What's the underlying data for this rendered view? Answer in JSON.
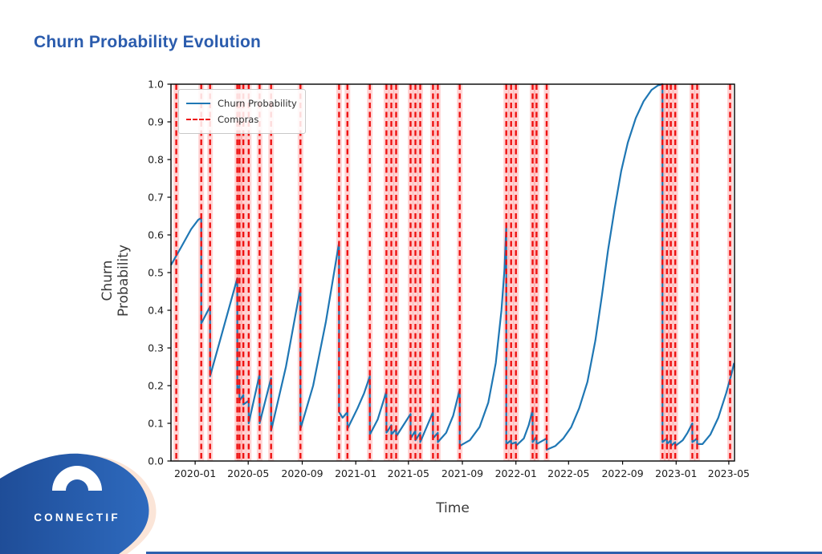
{
  "page": {
    "heading": "Churn Probability Evolution"
  },
  "brand": {
    "name": "CONNECTIF"
  },
  "colors": {
    "title": "#2b5cad",
    "series_line": "#1f77b4",
    "event_line": "#ee1111",
    "event_halo": "#ff3c3c38",
    "logo_dark": "#1d4a94",
    "logo_light": "#2e6abe",
    "logo_outline": "#fbe5d8",
    "bottom_bar": "#2e5fad"
  },
  "chart_data": {
    "type": "line",
    "title": "Churn Probability Evolution",
    "xlabel": "Time",
    "ylabel": "Churn Probability",
    "ylim": [
      0.0,
      1.0
    ],
    "grid": false,
    "x_range": [
      "2019-11-07",
      "2023-05-14"
    ],
    "x_ticks": [
      "2020-01",
      "2020-05",
      "2020-09",
      "2021-01",
      "2021-05",
      "2021-09",
      "2022-01",
      "2022-05",
      "2022-09",
      "2023-01",
      "2023-05"
    ],
    "y_ticks": [
      0.0,
      0.1,
      0.2,
      0.3,
      0.4,
      0.5,
      0.6,
      0.7,
      0.8,
      0.9,
      1.0
    ],
    "legend": {
      "position": "upper left",
      "entries": [
        {
          "label": "Churn Probability",
          "style": "solid",
          "color": "#1f77b4"
        },
        {
          "label": "Compras",
          "style": "dashed",
          "color": "#ee1111"
        }
      ]
    },
    "series": [
      {
        "name": "Churn Probability",
        "color": "#1f77b4",
        "points": [
          [
            "2019-11-07",
            0.52
          ],
          [
            "2019-11-29",
            0.565
          ],
          [
            "2019-12-23",
            0.615
          ],
          [
            "2020-01-08",
            0.64
          ],
          [
            "2020-01-15",
            0.645
          ],
          [
            "2020-01-15",
            0.365
          ],
          [
            "2020-02-04",
            0.41
          ],
          [
            "2020-02-04",
            0.225
          ],
          [
            "2020-04-06",
            0.485
          ],
          [
            "2020-04-06",
            0.19
          ],
          [
            "2020-04-11",
            0.2
          ],
          [
            "2020-04-11",
            0.16
          ],
          [
            "2020-04-20",
            0.175
          ],
          [
            "2020-04-20",
            0.15
          ],
          [
            "2020-05-02",
            0.16
          ],
          [
            "2020-05-02",
            0.1
          ],
          [
            "2020-05-27",
            0.23
          ],
          [
            "2020-05-27",
            0.1
          ],
          [
            "2020-06-22",
            0.22
          ],
          [
            "2020-06-22",
            0.08
          ],
          [
            "2020-07-26",
            0.25
          ],
          [
            "2020-08-28",
            0.46
          ],
          [
            "2020-08-28",
            0.085
          ],
          [
            "2020-09-26",
            0.2
          ],
          [
            "2020-10-25",
            0.37
          ],
          [
            "2020-11-24",
            0.58
          ],
          [
            "2020-11-24",
            0.13
          ],
          [
            "2020-12-02",
            0.115
          ],
          [
            "2020-12-13",
            0.13
          ],
          [
            "2020-12-13",
            0.085
          ],
          [
            "2021-01-05",
            0.14
          ],
          [
            "2021-01-20",
            0.18
          ],
          [
            "2021-02-02",
            0.225
          ],
          [
            "2021-02-02",
            0.07
          ],
          [
            "2021-02-20",
            0.11
          ],
          [
            "2021-03-12",
            0.185
          ],
          [
            "2021-03-12",
            0.075
          ],
          [
            "2021-03-23",
            0.095
          ],
          [
            "2021-03-23",
            0.07
          ],
          [
            "2021-04-03",
            0.085
          ],
          [
            "2021-04-03",
            0.065
          ],
          [
            "2021-05-06",
            0.125
          ],
          [
            "2021-05-06",
            0.06
          ],
          [
            "2021-05-17",
            0.08
          ],
          [
            "2021-05-17",
            0.055
          ],
          [
            "2021-05-28",
            0.075
          ],
          [
            "2021-05-28",
            0.05
          ],
          [
            "2021-06-26",
            0.13
          ],
          [
            "2021-06-26",
            0.06
          ],
          [
            "2021-07-07",
            0.075
          ],
          [
            "2021-07-07",
            0.05
          ],
          [
            "2021-07-26",
            0.075
          ],
          [
            "2021-08-11",
            0.12
          ],
          [
            "2021-08-26",
            0.19
          ],
          [
            "2021-08-26",
            0.04
          ],
          [
            "2021-09-18",
            0.055
          ],
          [
            "2021-10-10",
            0.09
          ],
          [
            "2021-10-30",
            0.155
          ],
          [
            "2021-11-16",
            0.26
          ],
          [
            "2021-11-29",
            0.4
          ],
          [
            "2021-12-06",
            0.51
          ],
          [
            "2021-12-10",
            0.625
          ],
          [
            "2021-12-10",
            0.045
          ],
          [
            "2021-12-21",
            0.055
          ],
          [
            "2021-12-21",
            0.045
          ],
          [
            "2022-01-01",
            0.05
          ],
          [
            "2022-01-01",
            0.04
          ],
          [
            "2022-01-19",
            0.06
          ],
          [
            "2022-01-30",
            0.095
          ],
          [
            "2022-02-08",
            0.135
          ],
          [
            "2022-02-08",
            0.05
          ],
          [
            "2022-02-17",
            0.065
          ],
          [
            "2022-02-17",
            0.045
          ],
          [
            "2022-03-12",
            0.06
          ],
          [
            "2022-03-12",
            0.03
          ],
          [
            "2022-04-01",
            0.04
          ],
          [
            "2022-04-19",
            0.06
          ],
          [
            "2022-05-07",
            0.09
          ],
          [
            "2022-05-25",
            0.14
          ],
          [
            "2022-06-13",
            0.21
          ],
          [
            "2022-07-01",
            0.32
          ],
          [
            "2022-07-16",
            0.44
          ],
          [
            "2022-07-30",
            0.56
          ],
          [
            "2022-08-14",
            0.67
          ],
          [
            "2022-08-29",
            0.77
          ],
          [
            "2022-09-13",
            0.845
          ],
          [
            "2022-10-01",
            0.91
          ],
          [
            "2022-10-19",
            0.955
          ],
          [
            "2022-11-06",
            0.985
          ],
          [
            "2022-11-21",
            0.997
          ],
          [
            "2022-12-01",
            1.0
          ],
          [
            "2022-12-01",
            0.05
          ],
          [
            "2022-12-11",
            0.06
          ],
          [
            "2022-12-11",
            0.045
          ],
          [
            "2022-12-20",
            0.055
          ],
          [
            "2022-12-20",
            0.04
          ],
          [
            "2022-12-30",
            0.05
          ],
          [
            "2022-12-30",
            0.04
          ],
          [
            "2023-01-16",
            0.055
          ],
          [
            "2023-01-27",
            0.075
          ],
          [
            "2023-02-07",
            0.1
          ],
          [
            "2023-02-07",
            0.05
          ],
          [
            "2023-02-18",
            0.06
          ],
          [
            "2023-02-18",
            0.045
          ],
          [
            "2023-03-02",
            0.045
          ],
          [
            "2023-03-20",
            0.07
          ],
          [
            "2023-04-07",
            0.115
          ],
          [
            "2023-04-25",
            0.18
          ],
          [
            "2023-05-08",
            0.235
          ],
          [
            "2023-05-13",
            0.26
          ]
        ]
      }
    ],
    "events": {
      "name": "Compras",
      "color": "#ee1111",
      "halo": "#ff3c3c38",
      "dates": [
        "2019-11-19",
        "2020-01-15",
        "2020-02-04",
        "2020-04-06",
        "2020-04-11",
        "2020-04-20",
        "2020-05-02",
        "2020-05-27",
        "2020-06-22",
        "2020-08-28",
        "2020-11-24",
        "2020-12-13",
        "2021-02-02",
        "2021-03-12",
        "2021-03-23",
        "2021-04-03",
        "2021-05-06",
        "2021-05-17",
        "2021-05-28",
        "2021-06-26",
        "2021-07-07",
        "2021-08-26",
        "2021-12-10",
        "2021-12-21",
        "2022-01-01",
        "2022-02-08",
        "2022-02-17",
        "2022-03-12",
        "2022-12-01",
        "2022-12-11",
        "2022-12-20",
        "2022-12-30",
        "2023-02-07",
        "2023-02-18",
        "2023-05-04"
      ]
    }
  }
}
